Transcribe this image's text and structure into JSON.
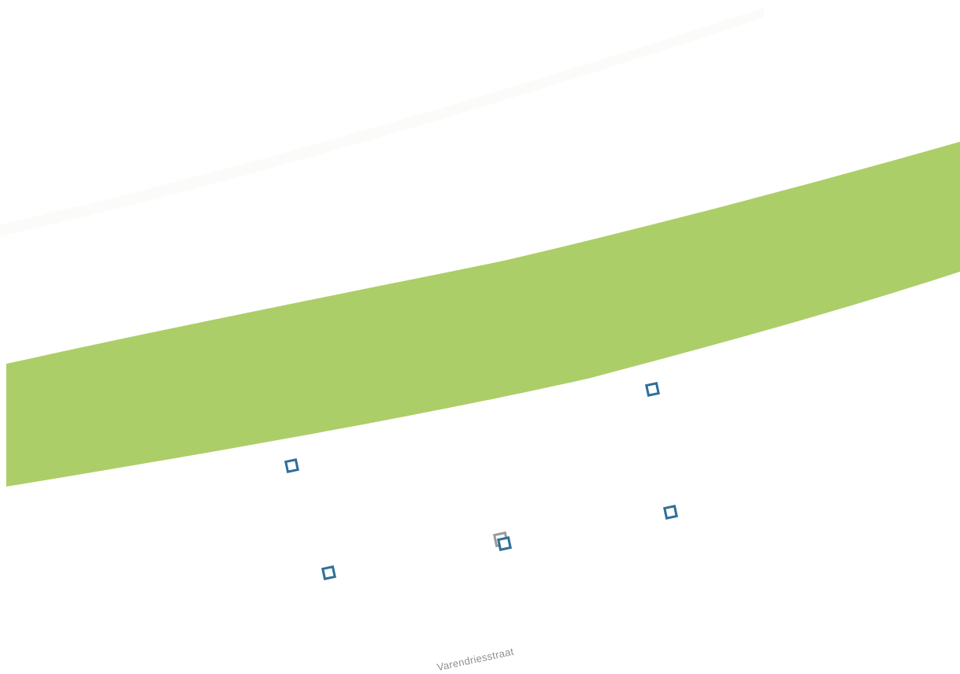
{
  "map": {
    "colors": {
      "background": "#ffffff",
      "green_area": "#acce68",
      "faint_road": "#fbfbf9",
      "vertex_stroke": "#2e6f99",
      "vertex_selected": "#9b9b9b",
      "label_text": "#8f8f8f"
    },
    "street_labels": [
      {
        "name": "Varendriesstraat"
      }
    ],
    "vertex_handles": [
      {
        "id": "vertex-1",
        "selected": false
      },
      {
        "id": "vertex-2",
        "selected": false
      },
      {
        "id": "vertex-3",
        "selected": false
      },
      {
        "id": "vertex-4",
        "selected": true
      },
      {
        "id": "vertex-5",
        "selected": false
      },
      {
        "id": "vertex-6",
        "selected": false
      }
    ]
  }
}
